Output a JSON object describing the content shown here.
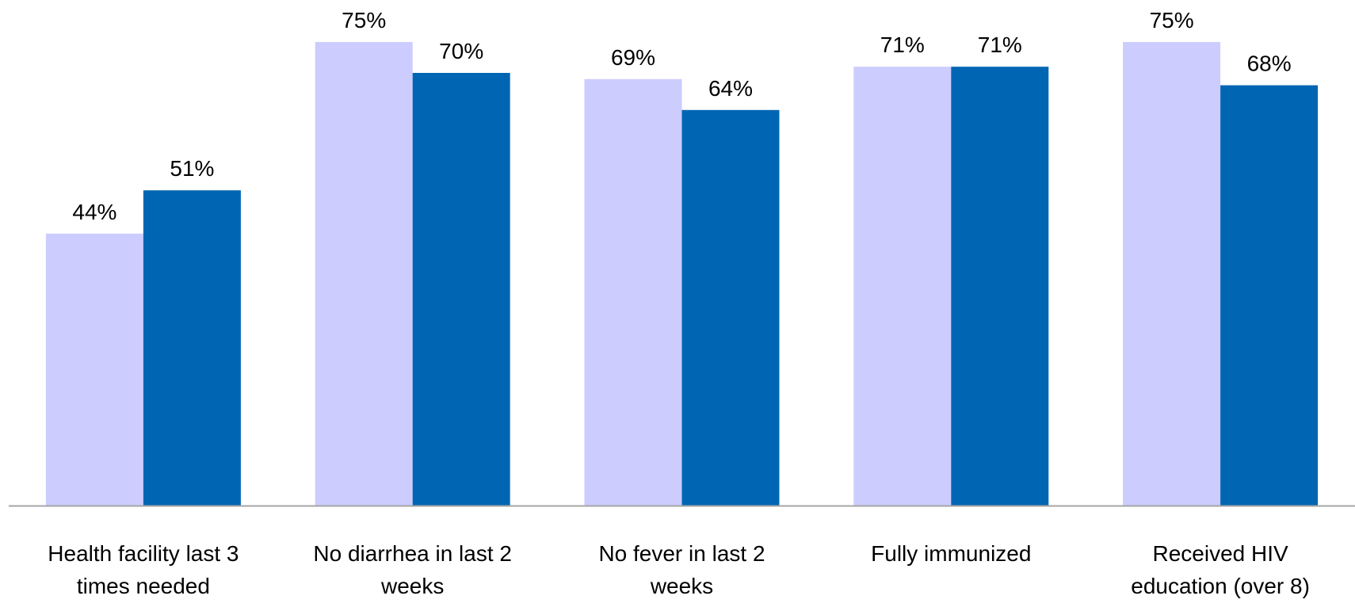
{
  "chart_data": {
    "type": "bar",
    "title": "",
    "xlabel": "",
    "ylabel": "",
    "ylim": [
      0,
      100
    ],
    "grid": false,
    "legend": "none",
    "categories": [
      [
        "Health facility last 3",
        "times needed"
      ],
      [
        "No diarrhea in last 2",
        "weeks"
      ],
      [
        "No fever in last 2",
        "weeks"
      ],
      [
        "Fully immunized"
      ],
      [
        "Received HIV",
        "education (over 8)"
      ]
    ],
    "series": [
      {
        "color": "#ccccff",
        "values": [
          44,
          75,
          69,
          71,
          75
        ],
        "labels": [
          "44%",
          "75%",
          "69%",
          "71%",
          "75%"
        ]
      },
      {
        "color": "#0066b3",
        "values": [
          51,
          70,
          64,
          71,
          68
        ],
        "labels": [
          "51%",
          "70%",
          "64%",
          "71%",
          "68%"
        ]
      }
    ],
    "colors": {
      "axis": "#a6a6a6",
      "text": "#000000"
    }
  }
}
